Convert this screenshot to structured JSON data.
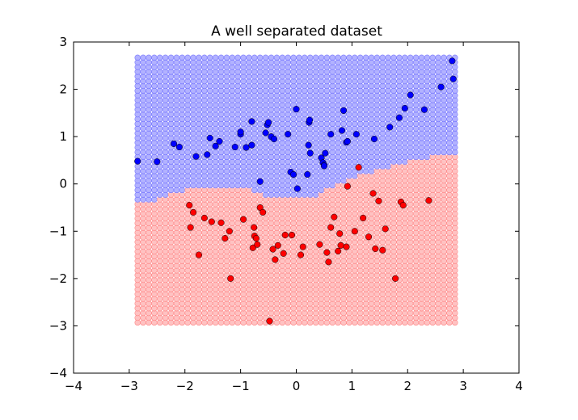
{
  "chart_data": {
    "type": "scatter",
    "title": "A well separated dataset",
    "xlabel": "",
    "ylabel": "",
    "xlim": [
      -4,
      4
    ],
    "ylim": [
      -4,
      3
    ],
    "xticks": [
      -4,
      -3,
      -2,
      -1,
      0,
      1,
      2,
      3,
      4
    ],
    "yticks": [
      -4,
      -3,
      -2,
      -1,
      0,
      1,
      2,
      3
    ],
    "grid": false,
    "colors": {
      "class_blue": "#0000ff",
      "class_red": "#ff0000",
      "region_blue_fill": "#aaaaff",
      "region_blue_stroke": "#7777ff",
      "region_red_fill": "#ffbbbb",
      "region_red_stroke": "#ff8888"
    },
    "decision_region": {
      "x_range": [
        -2.85,
        2.85
      ],
      "y_range": [
        -2.93,
        2.63
      ],
      "step": 0.1,
      "boundary": [
        [
          -2.85,
          -0.4
        ],
        [
          -2.5,
          -0.32
        ],
        [
          -2.3,
          -0.22
        ],
        [
          -2.1,
          -0.14
        ],
        [
          -1.9,
          -0.1
        ],
        [
          -1.5,
          -0.08
        ],
        [
          -1.0,
          -0.08
        ],
        [
          -0.8,
          -0.12
        ],
        [
          -0.6,
          -0.22
        ],
        [
          -0.4,
          -0.28
        ],
        [
          -0.2,
          -0.25
        ],
        [
          0.0,
          -0.25
        ],
        [
          0.2,
          -0.28
        ],
        [
          0.4,
          -0.22
        ],
        [
          0.6,
          -0.1
        ],
        [
          0.8,
          0.0
        ],
        [
          1.0,
          0.1
        ],
        [
          1.2,
          0.2
        ],
        [
          1.5,
          0.3
        ],
        [
          1.8,
          0.42
        ],
        [
          2.2,
          0.52
        ],
        [
          2.6,
          0.6
        ],
        [
          2.85,
          0.65
        ]
      ]
    },
    "series": [
      {
        "color": "#0000ff",
        "points": [
          [
            -2.85,
            0.48
          ],
          [
            -2.5,
            0.47
          ],
          [
            -2.2,
            0.85
          ],
          [
            -2.1,
            0.78
          ],
          [
            -1.8,
            0.58
          ],
          [
            -1.6,
            0.62
          ],
          [
            -1.55,
            0.97
          ],
          [
            -1.45,
            0.8
          ],
          [
            -1.38,
            0.9
          ],
          [
            -1.1,
            0.78
          ],
          [
            -1.0,
            1.05
          ],
          [
            -1.0,
            1.1
          ],
          [
            -0.9,
            0.77
          ],
          [
            -0.8,
            0.82
          ],
          [
            -0.8,
            1.32
          ],
          [
            -0.65,
            0.05
          ],
          [
            -0.55,
            1.08
          ],
          [
            -0.52,
            1.25
          ],
          [
            -0.5,
            1.3
          ],
          [
            -0.45,
            1.0
          ],
          [
            -0.4,
            0.95
          ],
          [
            -0.15,
            1.05
          ],
          [
            -0.1,
            0.25
          ],
          [
            -0.05,
            0.2
          ],
          [
            0.0,
            1.58
          ],
          [
            0.02,
            -0.1
          ],
          [
            0.2,
            0.2
          ],
          [
            0.22,
            0.82
          ],
          [
            0.23,
            1.3
          ],
          [
            0.24,
            1.35
          ],
          [
            0.25,
            0.65
          ],
          [
            0.45,
            0.55
          ],
          [
            0.48,
            0.45
          ],
          [
            0.5,
            0.4
          ],
          [
            0.5,
            0.38
          ],
          [
            0.52,
            0.65
          ],
          [
            0.62,
            1.05
          ],
          [
            0.82,
            1.13
          ],
          [
            0.85,
            1.55
          ],
          [
            0.9,
            0.88
          ],
          [
            0.92,
            0.9
          ],
          [
            1.08,
            1.05
          ],
          [
            1.4,
            0.95
          ],
          [
            1.68,
            1.2
          ],
          [
            1.85,
            1.4
          ],
          [
            1.95,
            1.6
          ],
          [
            2.05,
            1.88
          ],
          [
            2.3,
            1.57
          ],
          [
            2.6,
            2.05
          ],
          [
            2.8,
            2.6
          ],
          [
            2.82,
            2.22
          ]
        ]
      },
      {
        "color": "#ff0000",
        "points": [
          [
            -1.92,
            -0.45
          ],
          [
            -1.9,
            -0.92
          ],
          [
            -1.85,
            -0.6
          ],
          [
            -1.75,
            -1.5
          ],
          [
            -1.65,
            -0.72
          ],
          [
            -1.52,
            -0.8
          ],
          [
            -1.35,
            -0.82
          ],
          [
            -1.28,
            -1.15
          ],
          [
            -1.2,
            -1.0
          ],
          [
            -1.18,
            -2.0
          ],
          [
            -0.95,
            -0.75
          ],
          [
            -0.78,
            -1.35
          ],
          [
            -0.76,
            -0.92
          ],
          [
            -0.75,
            -1.1
          ],
          [
            -0.72,
            -1.15
          ],
          [
            -0.7,
            -1.28
          ],
          [
            -0.65,
            -0.5
          ],
          [
            -0.6,
            -0.6
          ],
          [
            -0.42,
            -1.38
          ],
          [
            -0.48,
            -2.9
          ],
          [
            -0.38,
            -1.6
          ],
          [
            -0.33,
            -1.3
          ],
          [
            -0.23,
            -1.47
          ],
          [
            -0.2,
            -1.08
          ],
          [
            -0.08,
            -1.08
          ],
          [
            0.08,
            -1.5
          ],
          [
            0.12,
            -1.33
          ],
          [
            0.42,
            -1.28
          ],
          [
            0.55,
            -1.45
          ],
          [
            0.58,
            -1.65
          ],
          [
            0.62,
            -0.92
          ],
          [
            0.68,
            -0.7
          ],
          [
            0.75,
            -1.42
          ],
          [
            0.78,
            -1.05
          ],
          [
            0.8,
            -1.3
          ],
          [
            0.9,
            -1.33
          ],
          [
            0.92,
            -0.05
          ],
          [
            1.05,
            -1.0
          ],
          [
            1.12,
            0.35
          ],
          [
            1.2,
            -0.72
          ],
          [
            1.3,
            -1.12
          ],
          [
            1.38,
            -0.2
          ],
          [
            1.42,
            -1.37
          ],
          [
            1.48,
            -0.36
          ],
          [
            1.55,
            -1.4
          ],
          [
            1.6,
            -0.95
          ],
          [
            1.78,
            -2.0
          ],
          [
            1.88,
            -0.38
          ],
          [
            1.92,
            -0.45
          ],
          [
            2.38,
            -0.35
          ]
        ]
      }
    ]
  }
}
